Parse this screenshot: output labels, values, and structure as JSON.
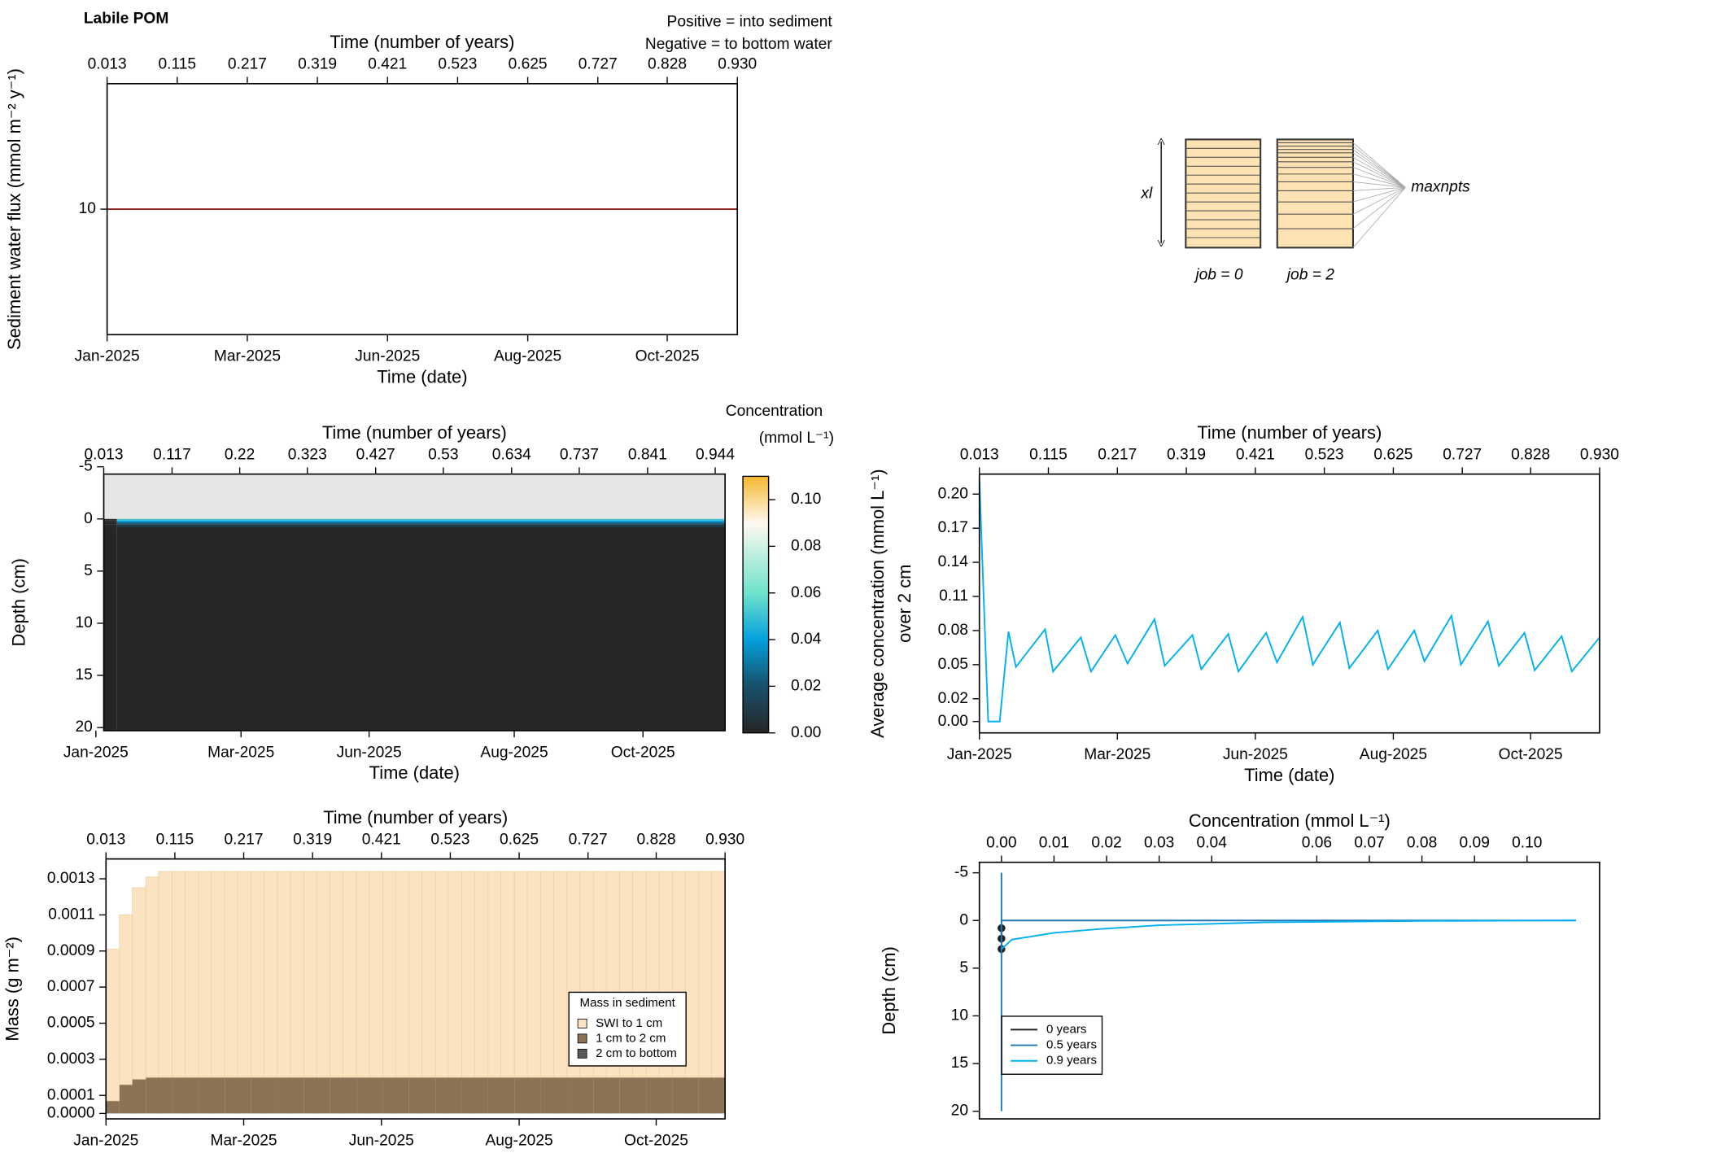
{
  "diagram": {
    "xl": "xl",
    "maxnpts": "maxnpts",
    "job0": "job = 0",
    "job2": "job = 2"
  },
  "chart_data": [
    {
      "type": "line",
      "title": "Labile POM",
      "annotations": [
        {
          "text": "Positive = into sediment",
          "color": "#8b1a1a"
        },
        {
          "text": "Negative = to bottom water",
          "color": "#00008b"
        }
      ],
      "xlabel_top": "Time (number of years)",
      "xlabel": "Time (date)",
      "ylabel": "Sediment water flux (mmol m⁻² y⁻¹)",
      "x": [
        0.013,
        0.93
      ],
      "values": [
        10,
        10
      ],
      "color": "#8b1a1a",
      "xlim": [
        0.013,
        0.93
      ],
      "xticks": [
        0.013,
        0.115,
        0.217,
        0.319,
        0.421,
        0.523,
        0.625,
        0.727,
        0.828,
        {
          "value": 0.93,
          "label": "0.930"
        }
      ],
      "date_ticks": [
        {
          "value": 0.013,
          "label": "Jan-2025"
        },
        {
          "value": 0.217,
          "label": "Mar-2025"
        },
        {
          "value": 0.421,
          "label": "Jun-2025"
        },
        {
          "value": 0.625,
          "label": "Aug-2025"
        },
        {
          "value": 0.828,
          "label": "Oct-2025"
        }
      ],
      "ylim": [
        9,
        11
      ],
      "yticks": [
        10
      ]
    },
    {
      "type": "heatmap",
      "xlabel_top": "Time (number of years)",
      "xlabel": "Time (date)",
      "ylabel": "Depth (cm)",
      "x_bins": [
        0.013,
        0.033,
        0.959
      ],
      "y_bins": [
        -5,
        0,
        0.15,
        0.3,
        0.5,
        0.8,
        21
      ],
      "z": [
        [
          null,
          null
        ],
        [
          0,
          0.05
        ],
        [
          0,
          0.04
        ],
        [
          0,
          0.025
        ],
        [
          0,
          0.01
        ],
        [
          0,
          0
        ]
      ],
      "na_color": "#e5e5e5",
      "colorscale": [
        [
          0,
          "#262626"
        ],
        [
          0.02,
          "#17506a"
        ],
        [
          0.04,
          "#04a0de"
        ],
        [
          0.06,
          "#6fe3cc"
        ],
        [
          0.09,
          "#fff8f0"
        ],
        [
          0.11,
          "#f5b82e"
        ]
      ],
      "colorbar_title": "Concentration",
      "colorbar_unit": "(mmol L⁻¹)",
      "zlim": [
        0,
        0.11
      ],
      "zticks": [
        {
          "value": 0,
          "label": "0.00"
        },
        0.02,
        0.04,
        0.06,
        0.08,
        {
          "value": 0.1,
          "label": "0.10"
        }
      ],
      "xlim": [
        0.013,
        0.959
      ],
      "xticks": [
        0.013,
        0.117,
        0.22,
        0.323,
        0.427,
        0.53,
        0.634,
        0.737,
        0.841,
        0.944
      ],
      "date_ticks": [
        {
          "value": 0.001,
          "label": "Jan-2025"
        },
        {
          "value": 0.222,
          "label": "Mar-2025"
        },
        {
          "value": 0.417,
          "label": "Jun-2025"
        },
        {
          "value": 0.638,
          "label": "Aug-2025"
        },
        {
          "value": 0.834,
          "label": "Oct-2025"
        }
      ],
      "ylim": [
        -4.3,
        20.3
      ],
      "y_reversed": true,
      "yticks": [
        -5,
        0,
        5,
        10,
        15,
        20
      ]
    },
    {
      "type": "line",
      "xlabel_top": "Time (number of years)",
      "xlabel": "Time (date)",
      "ylabel": "Average concentration (mmol L⁻¹)",
      "ylabel2": "over 2 cm",
      "x": [
        0.013,
        0.026,
        0.043,
        0.056,
        0.067,
        0.11,
        0.122,
        0.163,
        0.178,
        0.214,
        0.232,
        0.272,
        0.287,
        0.328,
        0.341,
        0.381,
        0.396,
        0.437,
        0.453,
        0.491,
        0.506,
        0.546,
        0.56,
        0.602,
        0.617,
        0.656,
        0.671,
        0.711,
        0.725,
        0.765,
        0.781,
        0.819,
        0.834,
        0.874,
        0.889,
        0.93
      ],
      "values": [
        0.213,
        0,
        0,
        0.079,
        0.048,
        0.081,
        0.044,
        0.074,
        0.044,
        0.076,
        0.051,
        0.09,
        0.049,
        0.076,
        0.046,
        0.077,
        0.044,
        0.078,
        0.052,
        0.092,
        0.05,
        0.087,
        0.047,
        0.08,
        0.046,
        0.08,
        0.053,
        0.093,
        0.05,
        0.088,
        0.049,
        0.078,
        0.045,
        0.075,
        0.044,
        0.074
      ],
      "color": "#00b0f0",
      "xlim": [
        0.013,
        0.93
      ],
      "xticks": [
        0.013,
        0.115,
        0.217,
        0.319,
        0.421,
        0.523,
        0.625,
        0.727,
        0.828,
        {
          "value": 0.93,
          "label": "0.930"
        }
      ],
      "date_ticks": [
        {
          "value": 0.013,
          "label": "Jan-2025"
        },
        {
          "value": 0.217,
          "label": "Mar-2025"
        },
        {
          "value": 0.421,
          "label": "Jun-2025"
        },
        {
          "value": 0.625,
          "label": "Aug-2025"
        },
        {
          "value": 0.828,
          "label": "Oct-2025"
        }
      ],
      "ylim": [
        -0.01,
        0.2176
      ],
      "yticks": [
        {
          "value": 0,
          "label": "0.00"
        },
        0.02,
        0.05,
        0.08,
        0.11,
        0.14,
        0.17,
        {
          "value": 0.2,
          "label": "0.20"
        }
      ]
    },
    {
      "type": "stacked_bar",
      "xlabel_top": "Time (number of years)",
      "xlabel": "Time (date)",
      "ylabel": "Mass (g m⁻²)",
      "legend_title": "Mass in sediment",
      "legend": "right",
      "x": [
        0.013,
        0.033,
        0.052,
        0.072,
        0.091,
        0.111,
        0.13,
        0.15,
        0.169,
        0.189,
        0.208,
        0.228,
        0.247,
        0.267,
        0.286,
        0.306,
        0.325,
        0.345,
        0.364,
        0.384,
        0.403,
        0.423,
        0.442,
        0.462,
        0.481,
        0.501,
        0.52,
        0.54,
        0.559,
        0.579,
        0.598,
        0.618,
        0.637,
        0.657,
        0.676,
        0.696,
        0.715,
        0.735,
        0.754,
        0.774,
        0.793,
        0.813,
        0.832,
        0.852,
        0.871,
        0.891,
        0.91,
        0.93
      ],
      "series": [
        {
          "name": "SWI to 1 cm",
          "color": "#fbe3c2",
          "values": [
            0.00084,
            0.00094,
            0.00106,
            0.00111,
            0.00114,
            0.00114,
            0.00114,
            0.00114,
            0.00114,
            0.00114,
            0.00114,
            0.00114,
            0.00114,
            0.00114,
            0.00114,
            0.00114,
            0.00114,
            0.00114,
            0.00114,
            0.00114,
            0.00114,
            0.00114,
            0.00114,
            0.00114,
            0.00114,
            0.00114,
            0.00114,
            0.00114,
            0.00114,
            0.00114,
            0.00114,
            0.00114,
            0.00114,
            0.00114,
            0.00114,
            0.00114,
            0.00114,
            0.00114,
            0.00114,
            0.00114,
            0.00114,
            0.00114,
            0.00114,
            0.00114,
            0.00114,
            0.00114,
            0.00114,
            0.00114
          ]
        },
        {
          "name": "1 cm to 2 cm",
          "color": "#8b7355",
          "values": [
            7e-05,
            0.00016,
            0.00019,
            0.0002,
            0.0002,
            0.0002,
            0.0002,
            0.0002,
            0.0002,
            0.0002,
            0.0002,
            0.0002,
            0.0002,
            0.0002,
            0.0002,
            0.0002,
            0.0002,
            0.0002,
            0.0002,
            0.0002,
            0.0002,
            0.0002,
            0.0002,
            0.0002,
            0.0002,
            0.0002,
            0.0002,
            0.0002,
            0.0002,
            0.0002,
            0.0002,
            0.0002,
            0.0002,
            0.0002,
            0.0002,
            0.0002,
            0.0002,
            0.0002,
            0.0002,
            0.0002,
            0.0002,
            0.0002,
            0.0002,
            0.0002,
            0.0002,
            0.0002,
            0.0002,
            0.0002
          ]
        },
        {
          "name": "2 cm to bottom",
          "color": "#5a5a5a",
          "values": [
            0,
            0,
            0,
            0,
            0,
            0,
            0,
            0,
            0,
            0,
            0,
            0,
            0,
            0,
            0,
            0,
            0,
            0,
            0,
            0,
            0,
            0,
            0,
            0,
            0,
            0,
            0,
            0,
            0,
            0,
            0,
            0,
            0,
            0,
            0,
            0,
            0,
            0,
            0,
            0,
            0,
            0,
            0,
            0,
            0,
            0,
            0,
            0
          ]
        }
      ],
      "xlim": [
        0.013,
        0.93
      ],
      "xticks": [
        0.013,
        0.115,
        0.217,
        0.319,
        0.421,
        0.523,
        0.625,
        0.727,
        0.828,
        {
          "value": 0.93,
          "label": "0.930"
        }
      ],
      "date_ticks": [
        {
          "value": 0.013,
          "label": "Jan-2025"
        },
        {
          "value": 0.217,
          "label": "Mar-2025"
        },
        {
          "value": 0.421,
          "label": "Jun-2025"
        },
        {
          "value": 0.625,
          "label": "Aug-2025"
        },
        {
          "value": 0.828,
          "label": "Oct-2025"
        }
      ],
      "ylim": [
        -3e-05,
        0.00141
      ],
      "yticks": [
        {
          "value": 0,
          "label": "0.0000"
        },
        0.0001,
        0.0003,
        0.0005,
        0.0007,
        0.0009,
        0.0011,
        0.0013
      ]
    },
    {
      "type": "profile",
      "xlabel_top": "Concentration (mmol L⁻¹)",
      "ylabel": "Depth (cm)",
      "legend": "bottomleft",
      "series": [
        {
          "name": "0 years",
          "color": "#222222",
          "marker": true,
          "x": [
            0,
            0,
            0
          ],
          "y": [
            0.8,
            1.9,
            3.0
          ]
        },
        {
          "name": "0.5 years",
          "color": "#1f77b4",
          "marker": false,
          "x": [
            0.1093,
            0,
            0,
            0
          ],
          "y": [
            0,
            0,
            -5,
            20
          ]
        },
        {
          "name": "0.9 years",
          "color": "#00b0f0",
          "marker": false,
          "x": [
            0.1093,
            0.08,
            0.05,
            0.03,
            0.0185,
            0.01,
            0.002,
            0
          ],
          "y": [
            0,
            0.05,
            0.2,
            0.5,
            0.9,
            1.3,
            2.0,
            3.0
          ]
        }
      ],
      "xlim": [
        -0.0042,
        0.1138
      ],
      "xticks": [
        {
          "value": 0,
          "label": "0.00"
        },
        0.01,
        0.02,
        0.03,
        0.04,
        0.06,
        0.07,
        0.08,
        0.09,
        {
          "value": 0.1,
          "label": "0.10"
        }
      ],
      "ylim": [
        -6.1,
        20.8
      ],
      "y_reversed": true,
      "yticks": [
        -5,
        0,
        5,
        10,
        15,
        20
      ]
    }
  ]
}
